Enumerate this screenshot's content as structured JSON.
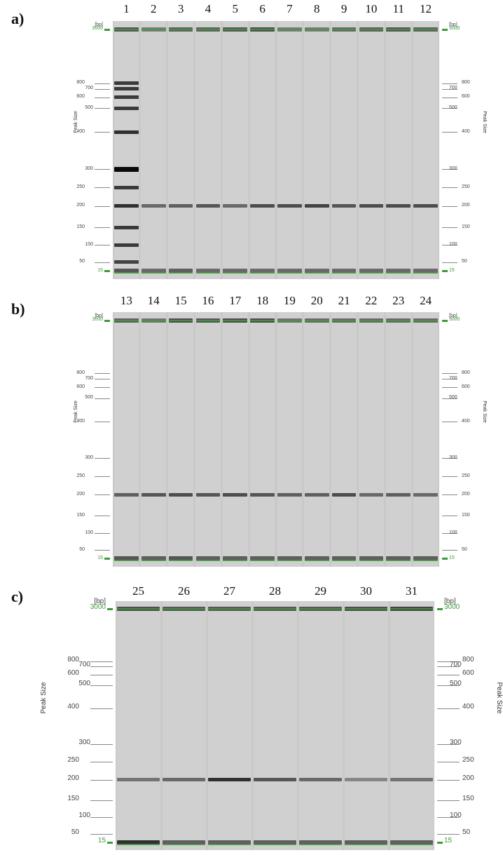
{
  "axis_title": "Peak Size",
  "unit": "[bp]",
  "size_ticks": [
    3000,
    800,
    700,
    600,
    500,
    400,
    300,
    250,
    200,
    150,
    100,
    50,
    15
  ],
  "marker_sizes": [
    3000,
    15
  ],
  "colors": {
    "gel": "#c9c9c9",
    "lane": "#d0d0d0",
    "marker": "#3f9a3a",
    "band": "#5a5a5a"
  },
  "panels": [
    {
      "letter": "a)",
      "lanes": [
        {
          "number": "1",
          "ladder": true,
          "bands": [
            {
              "bp": 3000,
              "intensity": 0.6
            },
            {
              "bp": 800,
              "intensity": 0.75
            },
            {
              "bp": 700,
              "intensity": 0.75
            },
            {
              "bp": 600,
              "intensity": 0.75
            },
            {
              "bp": 500,
              "intensity": 0.75
            },
            {
              "bp": 400,
              "intensity": 0.8
            },
            {
              "bp": 300,
              "intensity": 1.0
            },
            {
              "bp": 250,
              "intensity": 0.75
            },
            {
              "bp": 200,
              "intensity": 0.8
            },
            {
              "bp": 150,
              "intensity": 0.75
            },
            {
              "bp": 100,
              "intensity": 0.75
            },
            {
              "bp": 50,
              "intensity": 0.7
            },
            {
              "bp": 15,
              "intensity": 0.6
            }
          ]
        },
        {
          "number": "2",
          "bands": [
            {
              "bp": 3000,
              "intensity": 0.4
            },
            {
              "bp": 200,
              "intensity": 0.5
            },
            {
              "bp": 15,
              "intensity": 0.5
            }
          ]
        },
        {
          "number": "3",
          "bands": [
            {
              "bp": 3000,
              "intensity": 0.55
            },
            {
              "bp": 200,
              "intensity": 0.55
            },
            {
              "bp": 15,
              "intensity": 0.55
            }
          ]
        },
        {
          "number": "4",
          "bands": [
            {
              "bp": 3000,
              "intensity": 0.55
            },
            {
              "bp": 200,
              "intensity": 0.6
            },
            {
              "bp": 15,
              "intensity": 0.5
            }
          ]
        },
        {
          "number": "5",
          "bands": [
            {
              "bp": 3000,
              "intensity": 0.6
            },
            {
              "bp": 200,
              "intensity": 0.5
            },
            {
              "bp": 15,
              "intensity": 0.5
            }
          ]
        },
        {
          "number": "6",
          "bands": [
            {
              "bp": 3000,
              "intensity": 0.65
            },
            {
              "bp": 200,
              "intensity": 0.65
            },
            {
              "bp": 15,
              "intensity": 0.5
            }
          ]
        },
        {
          "number": "7",
          "bands": [
            {
              "bp": 3000,
              "intensity": 0.4
            },
            {
              "bp": 200,
              "intensity": 0.65
            },
            {
              "bp": 15,
              "intensity": 0.5
            }
          ]
        },
        {
          "number": "8",
          "bands": [
            {
              "bp": 3000,
              "intensity": 0.4
            },
            {
              "bp": 200,
              "intensity": 0.7
            },
            {
              "bp": 15,
              "intensity": 0.5
            }
          ]
        },
        {
          "number": "9",
          "bands": [
            {
              "bp": 3000,
              "intensity": 0.5
            },
            {
              "bp": 200,
              "intensity": 0.6
            },
            {
              "bp": 15,
              "intensity": 0.5
            }
          ]
        },
        {
          "number": "10",
          "bands": [
            {
              "bp": 3000,
              "intensity": 0.55
            },
            {
              "bp": 200,
              "intensity": 0.65
            },
            {
              "bp": 15,
              "intensity": 0.5
            }
          ]
        },
        {
          "number": "11",
          "bands": [
            {
              "bp": 3000,
              "intensity": 0.6
            },
            {
              "bp": 200,
              "intensity": 0.65
            },
            {
              "bp": 15,
              "intensity": 0.5
            }
          ]
        },
        {
          "number": "12",
          "bands": [
            {
              "bp": 3000,
              "intensity": 0.55
            },
            {
              "bp": 200,
              "intensity": 0.65
            },
            {
              "bp": 15,
              "intensity": 0.5
            }
          ]
        }
      ]
    },
    {
      "letter": "b)",
      "lanes": [
        {
          "number": "13",
          "bands": [
            {
              "bp": 3000,
              "intensity": 0.55
            },
            {
              "bp": 200,
              "intensity": 0.55
            },
            {
              "bp": 15,
              "intensity": 0.6
            }
          ]
        },
        {
          "number": "14",
          "bands": [
            {
              "bp": 3000,
              "intensity": 0.45
            },
            {
              "bp": 200,
              "intensity": 0.6
            },
            {
              "bp": 15,
              "intensity": 0.55
            }
          ]
        },
        {
          "number": "15",
          "bands": [
            {
              "bp": 3000,
              "intensity": 0.65
            },
            {
              "bp": 200,
              "intensity": 0.65
            },
            {
              "bp": 15,
              "intensity": 0.6
            }
          ]
        },
        {
          "number": "16",
          "bands": [
            {
              "bp": 3000,
              "intensity": 0.6
            },
            {
              "bp": 200,
              "intensity": 0.6
            },
            {
              "bp": 15,
              "intensity": 0.55
            }
          ]
        },
        {
          "number": "17",
          "bands": [
            {
              "bp": 3000,
              "intensity": 0.65
            },
            {
              "bp": 200,
              "intensity": 0.65
            },
            {
              "bp": 15,
              "intensity": 0.55
            }
          ]
        },
        {
          "number": "18",
          "bands": [
            {
              "bp": 3000,
              "intensity": 0.65
            },
            {
              "bp": 200,
              "intensity": 0.6
            },
            {
              "bp": 15,
              "intensity": 0.55
            }
          ]
        },
        {
          "number": "19",
          "bands": [
            {
              "bp": 3000,
              "intensity": 0.45
            },
            {
              "bp": 200,
              "intensity": 0.55
            },
            {
              "bp": 15,
              "intensity": 0.55
            }
          ]
        },
        {
          "number": "20",
          "bands": [
            {
              "bp": 3000,
              "intensity": 0.5
            },
            {
              "bp": 200,
              "intensity": 0.55
            },
            {
              "bp": 15,
              "intensity": 0.55
            }
          ]
        },
        {
          "number": "21",
          "bands": [
            {
              "bp": 3000,
              "intensity": 0.5
            },
            {
              "bp": 200,
              "intensity": 0.65
            },
            {
              "bp": 15,
              "intensity": 0.55
            }
          ]
        },
        {
          "number": "22",
          "bands": [
            {
              "bp": 3000,
              "intensity": 0.5
            },
            {
              "bp": 200,
              "intensity": 0.5
            },
            {
              "bp": 15,
              "intensity": 0.55
            }
          ]
        },
        {
          "number": "23",
          "bands": [
            {
              "bp": 3000,
              "intensity": 0.5
            },
            {
              "bp": 200,
              "intensity": 0.55
            },
            {
              "bp": 15,
              "intensity": 0.55
            }
          ]
        },
        {
          "number": "24",
          "bands": [
            {
              "bp": 3000,
              "intensity": 0.5
            },
            {
              "bp": 200,
              "intensity": 0.5
            },
            {
              "bp": 15,
              "intensity": 0.55
            }
          ]
        }
      ]
    },
    {
      "letter": "c)",
      "lanes": [
        {
          "number": "25",
          "bands": [
            {
              "bp": 3000,
              "intensity": 0.65
            },
            {
              "bp": 200,
              "intensity": 0.45
            },
            {
              "bp": 15,
              "intensity": 0.8
            }
          ]
        },
        {
          "number": "26",
          "bands": [
            {
              "bp": 3000,
              "intensity": 0.6
            },
            {
              "bp": 200,
              "intensity": 0.5
            },
            {
              "bp": 15,
              "intensity": 0.55
            }
          ]
        },
        {
          "number": "27",
          "bands": [
            {
              "bp": 3000,
              "intensity": 0.6
            },
            {
              "bp": 200,
              "intensity": 0.8
            },
            {
              "bp": 15,
              "intensity": 0.55
            }
          ]
        },
        {
          "number": "28",
          "bands": [
            {
              "bp": 3000,
              "intensity": 0.6
            },
            {
              "bp": 200,
              "intensity": 0.6
            },
            {
              "bp": 15,
              "intensity": 0.55
            }
          ]
        },
        {
          "number": "29",
          "bands": [
            {
              "bp": 3000,
              "intensity": 0.6
            },
            {
              "bp": 200,
              "intensity": 0.5
            },
            {
              "bp": 15,
              "intensity": 0.55
            }
          ]
        },
        {
          "number": "30",
          "bands": [
            {
              "bp": 3000,
              "intensity": 0.65
            },
            {
              "bp": 200,
              "intensity": 0.35
            },
            {
              "bp": 15,
              "intensity": 0.55
            }
          ]
        },
        {
          "number": "31",
          "bands": [
            {
              "bp": 3000,
              "intensity": 0.7
            },
            {
              "bp": 200,
              "intensity": 0.45
            },
            {
              "bp": 15,
              "intensity": 0.55
            }
          ]
        }
      ]
    }
  ]
}
